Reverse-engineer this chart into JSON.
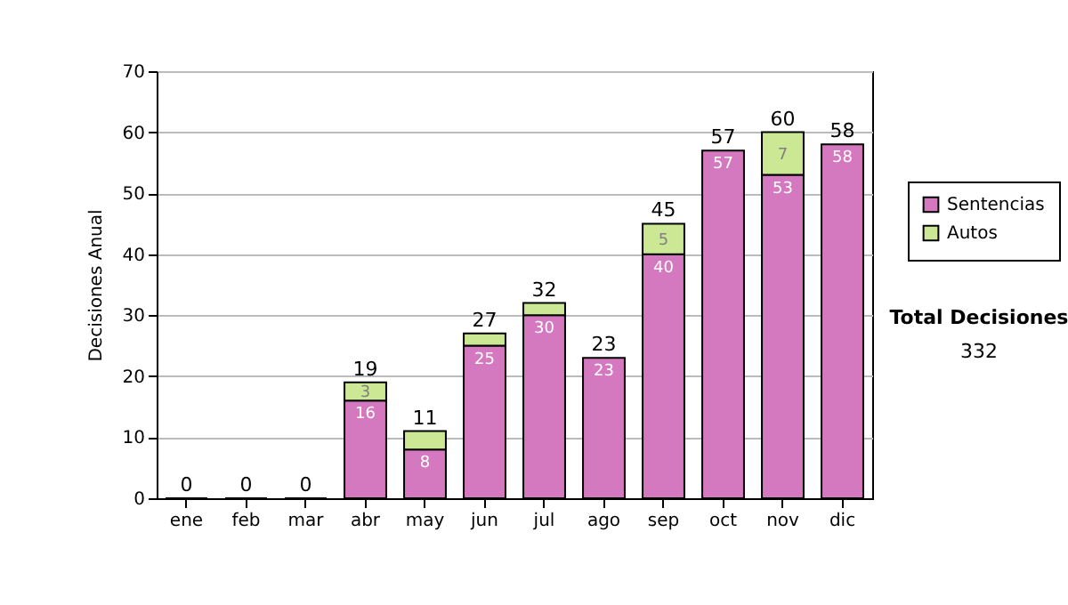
{
  "chart_data": {
    "type": "bar",
    "stacked": true,
    "ylabel": "Decisiones Anual",
    "categories": [
      "ene",
      "feb",
      "mar",
      "abr",
      "may",
      "jun",
      "jul",
      "ago",
      "sep",
      "oct",
      "nov",
      "dic"
    ],
    "series": [
      {
        "name": "Sentencias",
        "color": "#d478c0",
        "values": [
          0,
          0,
          0,
          16,
          8,
          25,
          30,
          23,
          40,
          57,
          53,
          58
        ],
        "value_labels": [
          null,
          null,
          null,
          "16",
          "8",
          "25",
          "30",
          "23",
          "40",
          "57",
          "53",
          "58"
        ]
      },
      {
        "name": "Autos",
        "color": "#cce894",
        "values": [
          null,
          null,
          null,
          3,
          3,
          2,
          2,
          null,
          5,
          null,
          7,
          null
        ],
        "value_labels": [
          null,
          null,
          null,
          "3",
          null,
          null,
          null,
          null,
          "5",
          null,
          "7",
          null
        ]
      }
    ],
    "totals": [
      "0",
      "0",
      "0",
      "19",
      "11",
      "27",
      "32",
      "23",
      "45",
      "57",
      "60",
      "58"
    ],
    "ylim": [
      0,
      70
    ],
    "yticks": [
      0,
      10,
      20,
      30,
      40,
      50,
      60,
      70
    ],
    "grid": "y",
    "legend": "right",
    "annotations": [
      "Total Decisiones",
      "332"
    ]
  }
}
